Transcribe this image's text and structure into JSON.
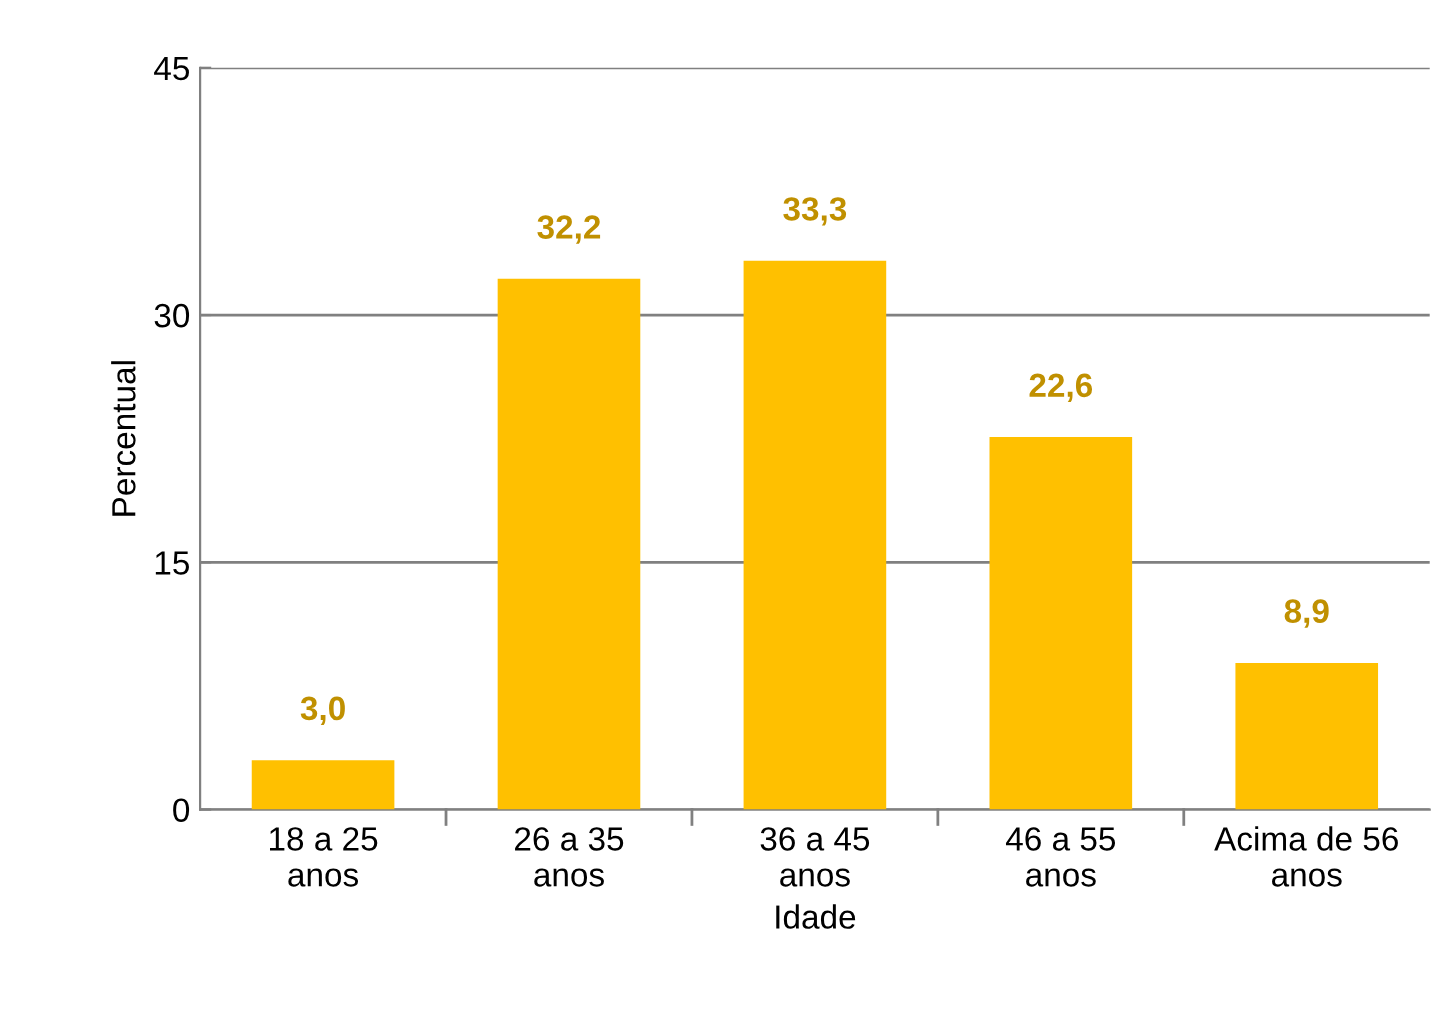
{
  "chart_data": {
    "type": "bar",
    "xlabel": "Idade",
    "ylabel": "Percentual",
    "categories": [
      "18 a 25 anos",
      "26 a 35 anos",
      "36 a 45 anos",
      "46 a 55 anos",
      "Acima de 56 anos"
    ],
    "values": [
      3.0,
      32.2,
      33.3,
      22.6,
      8.9
    ],
    "value_labels": [
      "3,0",
      "32,2",
      "33,3",
      "22,6",
      "8,9"
    ],
    "color": "#ffc000",
    "ylim": [
      0,
      45
    ],
    "yticks": [
      0,
      15,
      30,
      45
    ],
    "grid": "y",
    "legend": false
  }
}
